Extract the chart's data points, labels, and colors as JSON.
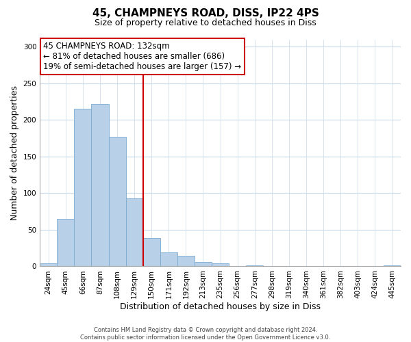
{
  "title": "45, CHAMPNEYS ROAD, DISS, IP22 4PS",
  "subtitle": "Size of property relative to detached houses in Diss",
  "xlabel": "Distribution of detached houses by size in Diss",
  "ylabel": "Number of detached properties",
  "bar_labels": [
    "24sqm",
    "45sqm",
    "66sqm",
    "87sqm",
    "108sqm",
    "129sqm",
    "150sqm",
    "171sqm",
    "192sqm",
    "213sqm",
    "235sqm",
    "256sqm",
    "277sqm",
    "298sqm",
    "319sqm",
    "340sqm",
    "361sqm",
    "382sqm",
    "403sqm",
    "424sqm",
    "445sqm"
  ],
  "bar_values": [
    4,
    65,
    215,
    222,
    177,
    93,
    39,
    19,
    14,
    6,
    4,
    0,
    1,
    0,
    0,
    0,
    0,
    0,
    0,
    0,
    1
  ],
  "bar_color": "#b8d0e8",
  "bar_edge_color": "#7aaacf",
  "vline_x": 5.5,
  "vline_color": "#cc0000",
  "annotation_title": "45 CHAMPNEYS ROAD: 132sqm",
  "annotation_line1": "← 81% of detached houses are smaller (686)",
  "annotation_line2": "19% of semi-detached houses are larger (157) →",
  "annotation_box_color": "#ffffff",
  "annotation_box_edge": "#cc0000",
  "footer_line1": "Contains HM Land Registry data © Crown copyright and database right 2024.",
  "footer_line2": "Contains public sector information licensed under the Open Government Licence v3.0.",
  "ylim": [
    0,
    310
  ],
  "yticks": [
    0,
    50,
    100,
    150,
    200,
    250,
    300
  ],
  "background_color": "#ffffff",
  "grid_color": "#c8d8e8",
  "title_fontsize": 11,
  "subtitle_fontsize": 9,
  "xlabel_fontsize": 9,
  "ylabel_fontsize": 9,
  "tick_fontsize": 7.5,
  "footer_fontsize": 6.0,
  "annot_fontsize": 8.5
}
